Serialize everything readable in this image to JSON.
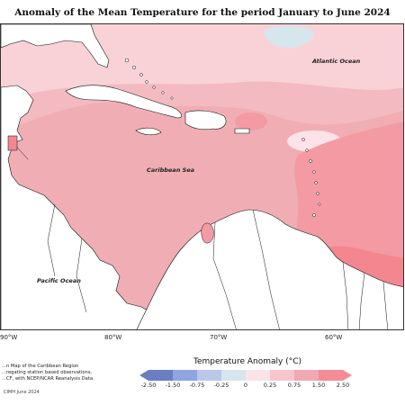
{
  "title": "Anomaly of the Mean Temperature for the period January to June 2024",
  "ocean_labels": {
    "atlantic": "Atlantic Ocean",
    "caribbean": "Caribbean Sea",
    "pacific": "Pacific Ocean"
  },
  "longitude_labels": [
    "90°W",
    "80°W",
    "70°W",
    "60°W"
  ],
  "caption_lines": [
    "...n Map of the Caribbean Region",
    "...regating station based observations,",
    "...CF, with NCEP/NCAR Reanalysis Data."
  ],
  "copyright": "CIMH June 2024",
  "legend": {
    "title": "Temperature Anomaly (°C)",
    "ticks": [
      "-2.50",
      "-1.50",
      "-0.75",
      "-0.25",
      "0",
      "0.25",
      "0.75",
      "1.50",
      "2.50"
    ],
    "colors": [
      "#6a7fc2",
      "#8fa4e0",
      "#b9c7ea",
      "#d7e6ee",
      "#fbe3e7",
      "#f7c5cc",
      "#f0a8b1",
      "#f68b98"
    ]
  },
  "anomaly_colors": {
    "cool": "#d5e6ec",
    "pale_pink": "#fbe3e7",
    "light_pink": "#f7c5cc",
    "medium_pink": "#f0aeb4",
    "warm_pink": "#f39aa3",
    "hot_pink": "#f4868f"
  }
}
